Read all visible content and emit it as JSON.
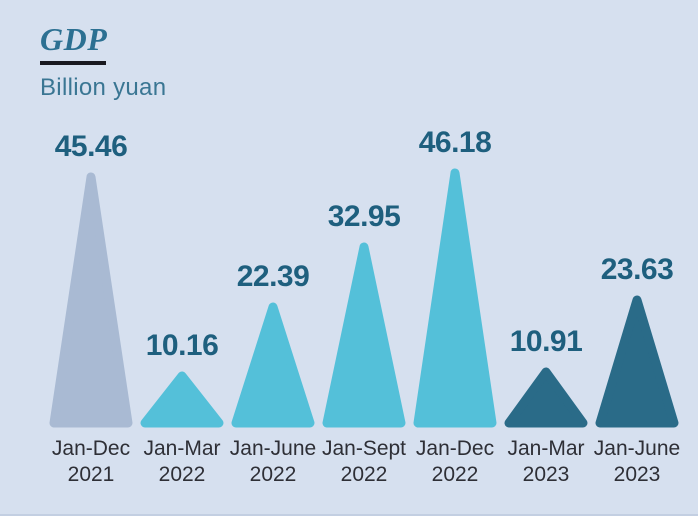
{
  "header": {
    "title": "GDP",
    "subtitle": "Billion yuan"
  },
  "chart_data": {
    "type": "bar",
    "marker_shape": "triangle",
    "title": "GDP",
    "ylabel": "Billion yuan",
    "xlabel": "",
    "ylim": [
      0,
      46.18
    ],
    "grid": false,
    "legend": false,
    "categories": [
      "Jan-Dec 2021",
      "Jan-Mar 2022",
      "Jan-June 2022",
      "Jan-Sept 2022",
      "Jan-Dec 2022",
      "Jan-Mar 2023",
      "Jan-June 2023"
    ],
    "values": [
      45.46,
      10.16,
      22.39,
      32.95,
      46.18,
      10.91,
      23.63
    ],
    "points": [
      {
        "period": "Jan-Dec",
        "year": "2021",
        "value": 45.46,
        "label": "45.46",
        "color": "#a9bad3"
      },
      {
        "period": "Jan-Mar",
        "year": "2022",
        "value": 10.16,
        "label": "10.16",
        "color": "#54c0d9"
      },
      {
        "period": "Jan-June",
        "year": "2022",
        "value": 22.39,
        "label": "22.39",
        "color": "#54c0d9"
      },
      {
        "period": "Jan-Sept",
        "year": "2022",
        "value": 32.95,
        "label": "32.95",
        "color": "#54c0d9"
      },
      {
        "period": "Jan-Dec",
        "year": "2022",
        "value": 46.18,
        "label": "46.18",
        "color": "#54c0d9"
      },
      {
        "period": "Jan-Mar",
        "year": "2023",
        "value": 10.91,
        "label": "10.91",
        "color": "#2a6b88"
      },
      {
        "period": "Jan-June",
        "year": "2023",
        "value": 23.63,
        "label": "23.63",
        "color": "#2a6b88"
      }
    ]
  },
  "colors": {
    "background": "#d6e0ef",
    "title": "#2c7092",
    "subtitle": "#3a7693",
    "title_underline": "#191920",
    "value_label": "#1e5f7e",
    "axis_label": "#2e2f36",
    "triangle_2021": "#a9bad3",
    "triangle_2022": "#54c0d9",
    "triangle_2023": "#2a6b88"
  }
}
